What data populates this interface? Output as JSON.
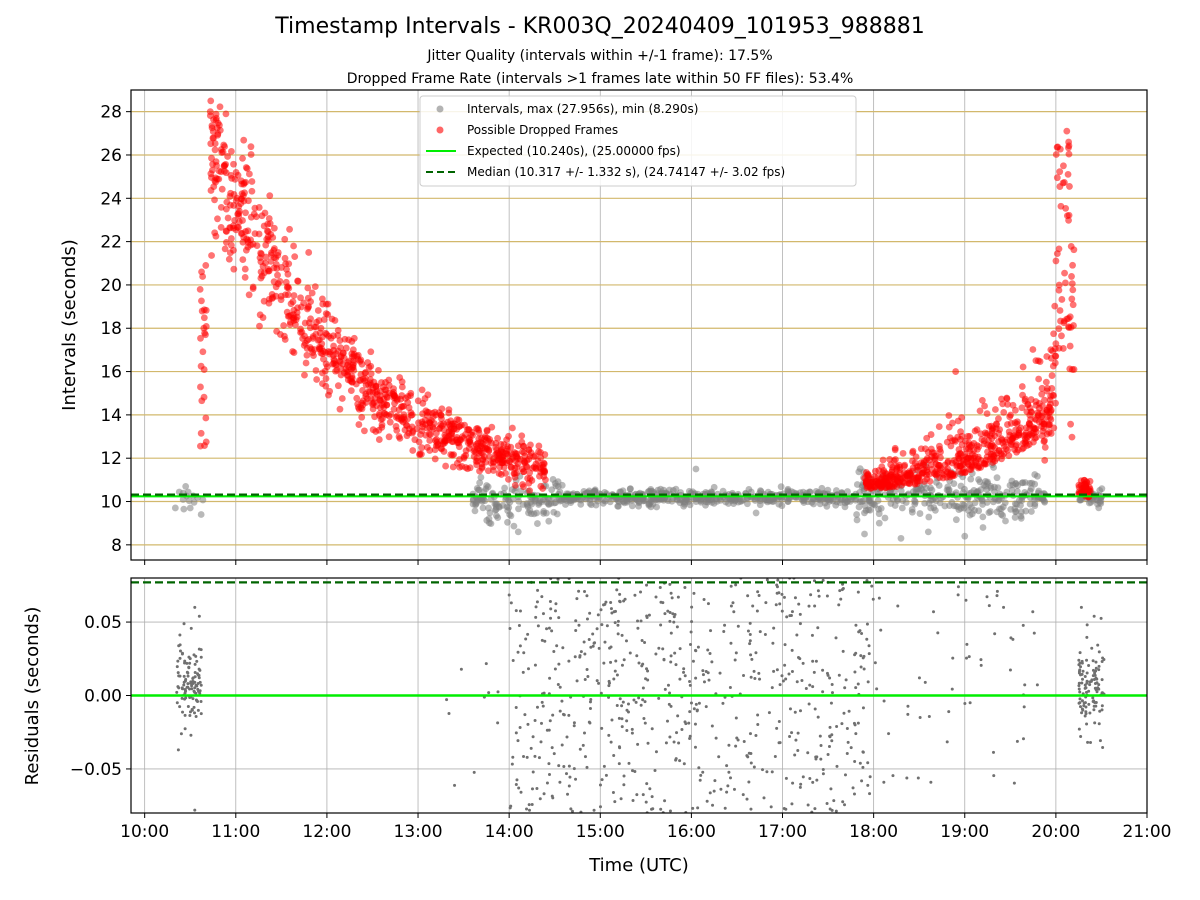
{
  "header": {
    "title": "Timestamp Intervals - KR003Q_20240409_101953_988881",
    "subtitle_1": "Jitter Quality (intervals within +/-1 frame): 17.5%",
    "subtitle_2": "Dropped Frame Rate (intervals >1 frames late within 50 FF files): 53.4%"
  },
  "chart_data": [
    {
      "type": "scatter",
      "panel": "top",
      "ylabel": "Intervals (seconds)",
      "xlim": [
        9.85,
        21.0
      ],
      "ylim": [
        7.3,
        29.0
      ],
      "yticks": [
        8,
        10,
        12,
        14,
        16,
        18,
        20,
        22,
        24,
        26,
        28
      ],
      "grid": true,
      "legend_placement": "upper-center",
      "legend": [
        {
          "label": "Intervals, max (27.956s), min (8.290s)",
          "marker": "dot",
          "color": "#808080"
        },
        {
          "label": "Possible Dropped Frames",
          "marker": "dot",
          "color": "#ff0000"
        },
        {
          "label": "Expected (10.240s), (25.00000 fps)",
          "marker": "line-solid",
          "color": "#00ee00"
        },
        {
          "label": "Median (10.317 +/- 1.332 s), (24.74147 +/- 3.02 fps)",
          "marker": "line-dashed",
          "color": "#006400"
        }
      ],
      "expected_line": 10.24,
      "median_line": 10.317,
      "series": [
        {
          "name": "Intervals, max (27.956s), min (8.290s)",
          "color": "#808080",
          "description": "Intervals cluster around 10.2 s from ~10:20 to 20:30 UTC, ranging about 8.3 to 11.5 s",
          "points": [
            [
              10.35,
              10.2
            ],
            [
              10.45,
              10.7
            ],
            [
              10.5,
              9.7
            ],
            [
              10.58,
              10.3
            ],
            [
              10.62,
              9.4
            ],
            [
              10.65,
              10.5
            ],
            [
              13.9,
              9.0
            ],
            [
              14.1,
              8.8
            ],
            [
              14.3,
              9.3
            ],
            [
              14.5,
              10.0
            ],
            [
              15.0,
              10.3
            ],
            [
              15.5,
              10.2
            ],
            [
              16.0,
              10.1
            ],
            [
              16.5,
              10.3
            ],
            [
              17.0,
              10.0
            ],
            [
              17.5,
              10.4
            ],
            [
              17.9,
              8.5
            ],
            [
              18.3,
              8.3
            ],
            [
              18.7,
              8.9
            ],
            [
              19.0,
              8.4
            ],
            [
              19.3,
              9.1
            ],
            [
              19.6,
              10.3
            ],
            [
              20.35,
              9.7
            ],
            [
              20.45,
              10.0
            ],
            [
              20.5,
              10.5
            ]
          ]
        },
        {
          "name": "Possible Dropped Frames",
          "color": "#ff0000",
          "description": "Late intervals: peaks near 28 s at ~10:45 decaying to ~10.5 s by 14:30; rising again from 18:00 to ~27 s near 20:10",
          "points": [
            [
              10.62,
              15.2
            ],
            [
              10.68,
              21.0
            ],
            [
              10.72,
              28.0
            ],
            [
              10.78,
              26.0
            ],
            [
              10.85,
              24.0
            ],
            [
              10.9,
              22.0
            ],
            [
              11.0,
              20.0
            ],
            [
              11.2,
              18.0
            ],
            [
              11.4,
              17.5
            ],
            [
              11.6,
              16.5
            ],
            [
              11.8,
              21.5
            ],
            [
              12.0,
              16.0
            ],
            [
              12.2,
              16.0
            ],
            [
              12.5,
              15.0
            ],
            [
              12.8,
              14.0
            ],
            [
              13.0,
              13.5
            ],
            [
              13.3,
              12.5
            ],
            [
              13.6,
              11.5
            ],
            [
              14.0,
              10.8
            ],
            [
              14.3,
              10.5
            ],
            [
              18.0,
              10.6
            ],
            [
              18.5,
              10.9
            ],
            [
              18.9,
              16.0
            ],
            [
              19.0,
              11.5
            ],
            [
              19.4,
              12.0
            ],
            [
              19.7,
              12.5
            ],
            [
              19.9,
              15.0
            ],
            [
              20.0,
              18.0
            ],
            [
              20.05,
              21.5
            ],
            [
              20.08,
              25.5
            ],
            [
              20.12,
              27.0
            ],
            [
              20.2,
              19.0
            ],
            [
              20.3,
              10.5
            ]
          ]
        }
      ]
    },
    {
      "type": "scatter",
      "panel": "bottom",
      "ylabel": "Residuals (seconds)",
      "xlabel": "Time (UTC)",
      "xlim": [
        9.85,
        21.0
      ],
      "ylim": [
        -0.08,
        0.08
      ],
      "yticks": [
        -0.05,
        0.0,
        0.05
      ],
      "ytick_labels": [
        "−0.05",
        "0.00",
        "0.05"
      ],
      "xticks": [
        10,
        11,
        12,
        13,
        14,
        15,
        16,
        17,
        18,
        19,
        20,
        21
      ],
      "xtick_labels": [
        "10:00",
        "11:00",
        "12:00",
        "13:00",
        "14:00",
        "15:00",
        "16:00",
        "17:00",
        "18:00",
        "19:00",
        "20:00",
        "21:00"
      ],
      "grid": true,
      "expected_line": 0.0,
      "median_line": 0.077,
      "series": [
        {
          "name": "Residuals",
          "color": "#707070",
          "description": "Residual scatter: dense cluster 10:20-10:40 between -0.04 and 0.06, sparse points 13:00-14:00, dense spread -0.08..0.08 from 14:00 to 18:00, sparse 18:00-19:45, cluster 20:15-20:30",
          "points": [
            [
              10.35,
              0.0
            ],
            [
              10.4,
              0.02
            ],
            [
              10.45,
              -0.01
            ],
            [
              10.5,
              0.03
            ],
            [
              10.55,
              0.01
            ],
            [
              10.6,
              0.05
            ],
            [
              13.1,
              0.012
            ],
            [
              13.4,
              0.024
            ],
            [
              13.7,
              -0.02
            ],
            [
              14.0,
              0.07
            ],
            [
              14.3,
              0.03
            ],
            [
              14.6,
              -0.03
            ],
            [
              15.0,
              0.06
            ],
            [
              15.3,
              -0.07
            ],
            [
              15.6,
              0.02
            ],
            [
              16.0,
              0.0
            ],
            [
              16.4,
              -0.05
            ],
            [
              16.8,
              0.04
            ],
            [
              17.2,
              -0.02
            ],
            [
              17.6,
              0.07
            ],
            [
              17.9,
              -0.07
            ],
            [
              18.3,
              0.03
            ],
            [
              18.7,
              -0.03
            ],
            [
              19.2,
              -0.045
            ],
            [
              19.7,
              0.035
            ],
            [
              20.25,
              0.01
            ],
            [
              20.35,
              0.05
            ],
            [
              20.45,
              -0.03
            ]
          ]
        }
      ]
    }
  ]
}
